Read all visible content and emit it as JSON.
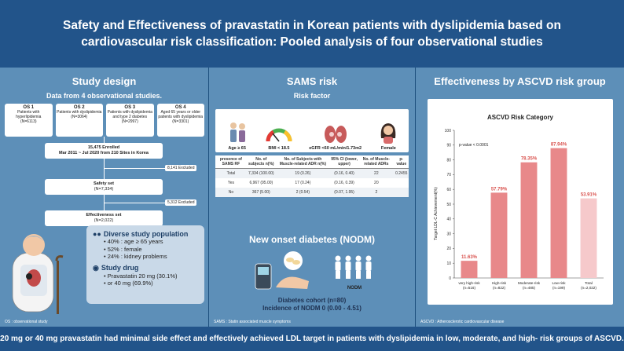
{
  "title": "Safety and Effectiveness of pravastatin in Korean patients with dyslipidemia based on cardiovascular risk classification: Pooled analysis of four observational studies",
  "footer": "20 mg or 40 mg pravastatin had minimal side effect and effectively achieved LDL target in patients with dyslipidemia in low, moderate, and high- risk groups of ASCVD.",
  "study_design": {
    "title": "Study design",
    "subtitle": "Data from 4 observational studies.",
    "os": [
      {
        "name": "OS 1",
        "desc": "Patients with hyperlipidemia",
        "n": "(N=6113)"
      },
      {
        "name": "OS 2",
        "desc": "Patients with dyslipidemia",
        "n": "(N=3064)"
      },
      {
        "name": "OS 3",
        "desc": "Patients with dyslipidemia and type 2 diabetes",
        "n": "(N=2997)"
      },
      {
        "name": "OS 4",
        "desc": "Aged 65 years or older patients with dyslipidemia",
        "n": "(N=3301)"
      }
    ],
    "enrolled_line1": "15,475 Enrolled",
    "enrolled_line2": "Mar 2011 ~ Jul 2020 from 210 Sites in Korea",
    "excluded1": "8,141 Excluded",
    "safety_label": "Safety set",
    "safety_n": "(N=7,334)",
    "excluded2": "5,312 Excluded",
    "eff_label": "Effectiveness set",
    "eff_n": "(N=2,022)",
    "pop_title": "Diverse study population",
    "pop_items": [
      "40% : age ≥ 65 years",
      "52% : female",
      "24% : kidney problems"
    ],
    "drug_title": "Study drug",
    "drug_items": [
      "Pravastatin 20 mg (30.1%)",
      "or 40 mg (69.9%)"
    ],
    "note": "OS : observational study"
  },
  "sams": {
    "title": "SAMS risk",
    "subtitle": "Risk factor",
    "factors": [
      "Age ≥ 65",
      "BMI < 18.5",
      "eGFR <60 mL/min/1.73m2",
      "Female"
    ],
    "table_headers": [
      "presence of SAMS RF",
      "No. of subjects n(%)",
      "No. of Subjects with Muscle-related ADR n(%)",
      "95% CI (lower, upper)",
      "No. of Muscle-related ADRs",
      "p-value"
    ],
    "table_rows": [
      [
        "Total",
        "7,334 (100.00)",
        "19 (0.26)",
        "(0.16, 0.40)",
        "22",
        "0.2455"
      ],
      [
        "Yes",
        "6,967 (95.00)",
        "17 (0.24)",
        "(0.16, 0.39)",
        "20",
        ""
      ],
      [
        "No",
        "367 (5.00)",
        "2 (0.54)",
        "(0.07, 1.95)",
        "2",
        ""
      ]
    ],
    "nodm_title": "New onset diabetes (NODM)",
    "nodm_label": "NODM",
    "cohort": "Diabetes cohort (n=80)",
    "incidence": "Incidence of NODM 0 (0.00 - 4.51)",
    "note": "SAMS : Statin associated muscle symptoms"
  },
  "effectiveness": {
    "title": "Effectiveness by ASCVD risk group",
    "note": "ASCVD : Atherosclerotic cardiovascular disease"
  },
  "chart_data": {
    "type": "bar",
    "title": "ASCVD Risk Category",
    "ylabel": "Target LDL-C Achievement(%)",
    "annotation": "p-value < 0.0001",
    "ylim": [
      0,
      100
    ],
    "yticks": [
      0,
      10,
      20,
      30,
      40,
      50,
      60,
      70,
      80,
      90,
      100
    ],
    "categories": [
      {
        "name": "very high-risk",
        "n": "(n=516)"
      },
      {
        "name": "High-risk",
        "n": "(n=822)"
      },
      {
        "name": "Moderate-risk",
        "n": "(n=485)"
      },
      {
        "name": "Low-risk",
        "n": "(n=199)"
      },
      {
        "name": "Total",
        "n": "(n=2,022)"
      }
    ],
    "values": [
      11.63,
      57.79,
      78.35,
      87.94,
      53.91
    ],
    "labels": [
      "11.63%",
      "57.79%",
      "78.35%",
      "87.94%",
      "53.91%"
    ],
    "colors": [
      "#e8888a",
      "#e8888a",
      "#e8888a",
      "#e8888a",
      "#f6c9cb"
    ],
    "label_color": "#d9534f"
  }
}
